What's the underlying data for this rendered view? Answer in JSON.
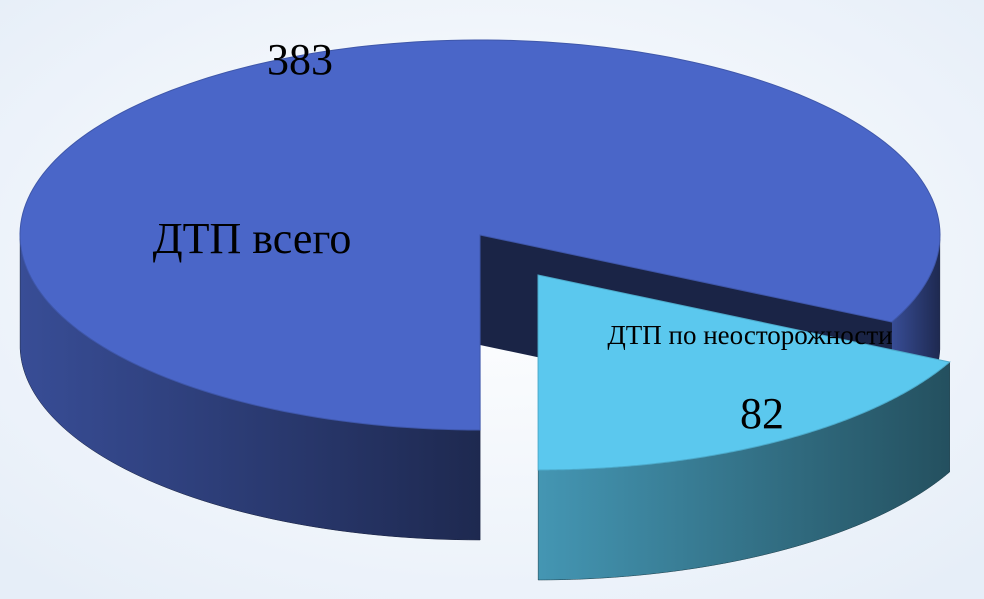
{
  "chart_data": {
    "type": "pie",
    "categories": [
      "ДТП всего",
      "ДТП по неосторожности"
    ],
    "values": [
      383,
      82
    ],
    "colors": [
      "#4a66c8",
      "#5bc8ee"
    ]
  }
}
